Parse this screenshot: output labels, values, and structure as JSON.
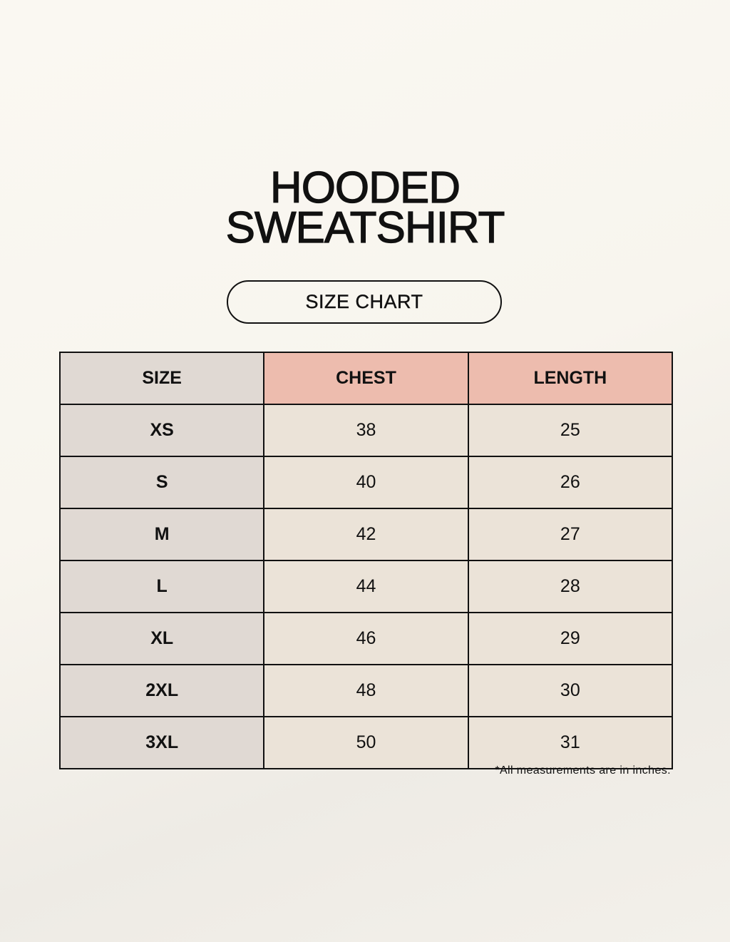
{
  "title": {
    "line1": "HOODED",
    "line2": "SWEATSHIRT"
  },
  "subtitle": "SIZE CHART",
  "table": {
    "headers": [
      "SIZE",
      "CHEST",
      "LENGTH"
    ],
    "rows": [
      [
        "XS",
        "38",
        "25"
      ],
      [
        "S",
        "40",
        "26"
      ],
      [
        "M",
        "42",
        "27"
      ],
      [
        "L",
        "44",
        "28"
      ],
      [
        "XL",
        "46",
        "29"
      ],
      [
        "2XL",
        "48",
        "30"
      ],
      [
        "3XL",
        "50",
        "31"
      ]
    ]
  },
  "note": "*All measurements are in inches.",
  "colors": {
    "header_accent": "#edbcae",
    "size_column": "#e0d9d3",
    "cells": "#ebe3d8"
  }
}
